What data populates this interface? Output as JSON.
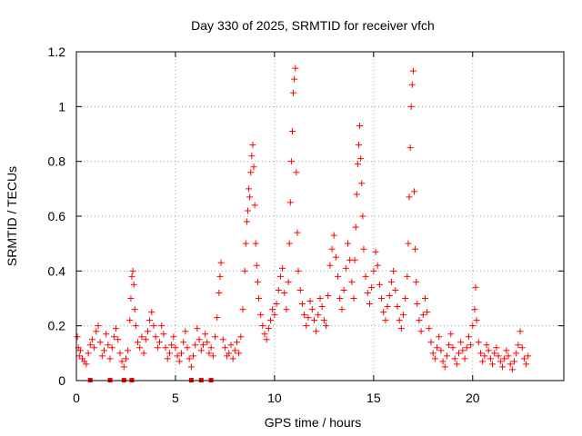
{
  "chart_data": {
    "type": "scatter",
    "title": "Day 330 of 2025, SRMTID for receiver vfch",
    "xlabel": "GPS time / hours",
    "ylabel": "SRMTID / TECUs",
    "xlim": [
      0,
      24.6
    ],
    "ylim": [
      0,
      1.2
    ],
    "x_ticks": [
      0,
      5,
      10,
      15,
      20
    ],
    "x_tick_labels": [
      "0",
      "5",
      "10",
      "15",
      "20"
    ],
    "y_ticks": [
      0,
      0.2,
      0.4,
      0.6,
      0.8,
      1.0,
      1.2
    ],
    "y_tick_labels": [
      "0",
      "0.2",
      "0.4",
      "0.6",
      "0.8",
      "1",
      "1.2"
    ],
    "grid": true,
    "marker": "+",
    "color": "#ff0000",
    "series": [
      {
        "name": "SRMTID",
        "points": [
          [
            0.05,
            0.16
          ],
          [
            0.1,
            0.12
          ],
          [
            0.15,
            0.09
          ],
          [
            0.2,
            0.11
          ],
          [
            0.3,
            0.08
          ],
          [
            0.4,
            0.07
          ],
          [
            0.5,
            0.06
          ],
          [
            0.6,
            0.1
          ],
          [
            0.7,
            0.13
          ],
          [
            0.8,
            0.15
          ],
          [
            0.9,
            0.12
          ],
          [
            1.0,
            0.18
          ],
          [
            1.1,
            0.2
          ],
          [
            1.2,
            0.14
          ],
          [
            1.3,
            0.09
          ],
          [
            1.4,
            0.11
          ],
          [
            1.5,
            0.17
          ],
          [
            1.6,
            0.13
          ],
          [
            1.7,
            0.08
          ],
          [
            1.8,
            0.12
          ],
          [
            1.9,
            0.16
          ],
          [
            2.0,
            0.19
          ],
          [
            2.1,
            0.15
          ],
          [
            2.2,
            0.1
          ],
          [
            2.3,
            0.07
          ],
          [
            2.4,
            0.05
          ],
          [
            2.5,
            0.08
          ],
          [
            2.6,
            0.11
          ],
          [
            2.7,
            0.22
          ],
          [
            2.75,
            0.3
          ],
          [
            2.8,
            0.38
          ],
          [
            2.85,
            0.4
          ],
          [
            2.9,
            0.35
          ],
          [
            2.95,
            0.26
          ],
          [
            3.0,
            0.2
          ],
          [
            3.1,
            0.14
          ],
          [
            3.2,
            0.12
          ],
          [
            3.3,
            0.16
          ],
          [
            3.4,
            0.1
          ],
          [
            3.5,
            0.15
          ],
          [
            3.6,
            0.18
          ],
          [
            3.7,
            0.22
          ],
          [
            3.8,
            0.25
          ],
          [
            3.9,
            0.2
          ],
          [
            4.0,
            0.16
          ],
          [
            4.1,
            0.12
          ],
          [
            4.2,
            0.14
          ],
          [
            4.3,
            0.2
          ],
          [
            4.4,
            0.17
          ],
          [
            4.5,
            0.12
          ],
          [
            4.6,
            0.08
          ],
          [
            4.7,
            0.1
          ],
          [
            4.8,
            0.13
          ],
          [
            4.9,
            0.16
          ],
          [
            5.0,
            0.12
          ],
          [
            5.1,
            0.09
          ],
          [
            5.2,
            0.07
          ],
          [
            5.3,
            0.1
          ],
          [
            5.4,
            0.14
          ],
          [
            5.5,
            0.18
          ],
          [
            5.6,
            0.12
          ],
          [
            5.7,
            0.08
          ],
          [
            5.8,
            0.05
          ],
          [
            5.9,
            0.09
          ],
          [
            6.0,
            0.13
          ],
          [
            6.1,
            0.19
          ],
          [
            6.2,
            0.15
          ],
          [
            6.3,
            0.11
          ],
          [
            6.4,
            0.13
          ],
          [
            6.5,
            0.17
          ],
          [
            6.6,
            0.14
          ],
          [
            6.7,
            0.1
          ],
          [
            6.8,
            0.12
          ],
          [
            6.9,
            0.09
          ],
          [
            7.0,
            0.16
          ],
          [
            7.1,
            0.23
          ],
          [
            7.2,
            0.32
          ],
          [
            7.25,
            0.38
          ],
          [
            7.3,
            0.43
          ],
          [
            7.4,
            0.15
          ],
          [
            7.5,
            0.12
          ],
          [
            7.6,
            0.09
          ],
          [
            7.7,
            0.1
          ],
          [
            7.8,
            0.13
          ],
          [
            7.9,
            0.08
          ],
          [
            8.0,
            0.11
          ],
          [
            8.1,
            0.14
          ],
          [
            8.2,
            0.1
          ],
          [
            8.3,
            0.16
          ],
          [
            8.4,
            0.26
          ],
          [
            8.5,
            0.4
          ],
          [
            8.55,
            0.5
          ],
          [
            8.6,
            0.58
          ],
          [
            8.65,
            0.62
          ],
          [
            8.7,
            0.7
          ],
          [
            8.75,
            0.67
          ],
          [
            8.8,
            0.76
          ],
          [
            8.85,
            0.82
          ],
          [
            8.9,
            0.86
          ],
          [
            8.95,
            0.78
          ],
          [
            9.0,
            0.64
          ],
          [
            9.05,
            0.5
          ],
          [
            9.1,
            0.42
          ],
          [
            9.15,
            0.36
          ],
          [
            9.2,
            0.3
          ],
          [
            9.3,
            0.24
          ],
          [
            9.4,
            0.2
          ],
          [
            9.5,
            0.17
          ],
          [
            9.6,
            0.15
          ],
          [
            9.7,
            0.19
          ],
          [
            9.8,
            0.22
          ],
          [
            9.9,
            0.26
          ],
          [
            10.0,
            0.24
          ],
          [
            10.1,
            0.28
          ],
          [
            10.2,
            0.33
          ],
          [
            10.3,
            0.38
          ],
          [
            10.4,
            0.41
          ],
          [
            10.5,
            0.32
          ],
          [
            10.6,
            0.26
          ],
          [
            10.7,
            0.36
          ],
          [
            10.75,
            0.5
          ],
          [
            10.8,
            0.65
          ],
          [
            10.85,
            0.8
          ],
          [
            10.9,
            0.91
          ],
          [
            10.95,
            1.05
          ],
          [
            11.0,
            1.1
          ],
          [
            11.05,
            1.14
          ],
          [
            11.1,
            0.76
          ],
          [
            11.15,
            0.54
          ],
          [
            11.2,
            0.4
          ],
          [
            11.3,
            0.33
          ],
          [
            11.4,
            0.28
          ],
          [
            11.5,
            0.24
          ],
          [
            11.6,
            0.2
          ],
          [
            11.7,
            0.23
          ],
          [
            11.8,
            0.29
          ],
          [
            11.9,
            0.26
          ],
          [
            12.0,
            0.22
          ],
          [
            12.1,
            0.18
          ],
          [
            12.2,
            0.24
          ],
          [
            12.3,
            0.3
          ],
          [
            12.4,
            0.27
          ],
          [
            12.5,
            0.22
          ],
          [
            12.6,
            0.2
          ],
          [
            12.7,
            0.31
          ],
          [
            12.8,
            0.42
          ],
          [
            12.9,
            0.48
          ],
          [
            13.0,
            0.53
          ],
          [
            13.1,
            0.45
          ],
          [
            13.2,
            0.38
          ],
          [
            13.3,
            0.3
          ],
          [
            13.4,
            0.26
          ],
          [
            13.5,
            0.33
          ],
          [
            13.6,
            0.41
          ],
          [
            13.7,
            0.5
          ],
          [
            13.8,
            0.44
          ],
          [
            13.9,
            0.36
          ],
          [
            14.0,
            0.3
          ],
          [
            14.05,
            0.44
          ],
          [
            14.1,
            0.56
          ],
          [
            14.15,
            0.68
          ],
          [
            14.2,
            0.79
          ],
          [
            14.25,
            0.86
          ],
          [
            14.3,
            0.93
          ],
          [
            14.35,
            0.81
          ],
          [
            14.4,
            0.72
          ],
          [
            14.45,
            0.6
          ],
          [
            14.5,
            0.48
          ],
          [
            14.6,
            0.38
          ],
          [
            14.7,
            0.32
          ],
          [
            14.8,
            0.28
          ],
          [
            14.9,
            0.34
          ],
          [
            15.0,
            0.4
          ],
          [
            15.1,
            0.47
          ],
          [
            15.2,
            0.42
          ],
          [
            15.3,
            0.35
          ],
          [
            15.4,
            0.3
          ],
          [
            15.5,
            0.25
          ],
          [
            15.6,
            0.22
          ],
          [
            15.7,
            0.27
          ],
          [
            15.8,
            0.31
          ],
          [
            15.9,
            0.36
          ],
          [
            16.0,
            0.4
          ],
          [
            16.1,
            0.33
          ],
          [
            16.2,
            0.27
          ],
          [
            16.3,
            0.22
          ],
          [
            16.4,
            0.19
          ],
          [
            16.5,
            0.24
          ],
          [
            16.6,
            0.3
          ],
          [
            16.7,
            0.38
          ],
          [
            16.75,
            0.5
          ],
          [
            16.8,
            0.67
          ],
          [
            16.85,
            0.85
          ],
          [
            16.9,
            1.0
          ],
          [
            16.95,
            1.08
          ],
          [
            17.0,
            1.13
          ],
          [
            17.05,
            0.69
          ],
          [
            17.1,
            0.48
          ],
          [
            17.15,
            0.36
          ],
          [
            17.2,
            0.28
          ],
          [
            17.3,
            0.22
          ],
          [
            17.4,
            0.18
          ],
          [
            17.5,
            0.24
          ],
          [
            17.6,
            0.3
          ],
          [
            17.7,
            0.25
          ],
          [
            17.8,
            0.19
          ],
          [
            17.9,
            0.14
          ],
          [
            18.0,
            0.1
          ],
          [
            18.1,
            0.08
          ],
          [
            18.2,
            0.12
          ],
          [
            18.3,
            0.16
          ],
          [
            18.4,
            0.11
          ],
          [
            18.5,
            0.07
          ],
          [
            18.6,
            0.05
          ],
          [
            18.7,
            0.09
          ],
          [
            18.8,
            0.13
          ],
          [
            18.9,
            0.17
          ],
          [
            19.0,
            0.12
          ],
          [
            19.1,
            0.08
          ],
          [
            19.2,
            0.06
          ],
          [
            19.3,
            0.1
          ],
          [
            19.4,
            0.14
          ],
          [
            19.5,
            0.11
          ],
          [
            19.6,
            0.08
          ],
          [
            19.7,
            0.12
          ],
          [
            19.8,
            0.16
          ],
          [
            19.9,
            0.13
          ],
          [
            20.0,
            0.2
          ],
          [
            20.1,
            0.26
          ],
          [
            20.15,
            0.34
          ],
          [
            20.2,
            0.22
          ],
          [
            20.3,
            0.14
          ],
          [
            20.4,
            0.1
          ],
          [
            20.5,
            0.07
          ],
          [
            20.6,
            0.09
          ],
          [
            20.7,
            0.13
          ],
          [
            20.8,
            0.11
          ],
          [
            20.9,
            0.08
          ],
          [
            21.0,
            0.06
          ],
          [
            21.1,
            0.1
          ],
          [
            21.2,
            0.12
          ],
          [
            21.3,
            0.09
          ],
          [
            21.4,
            0.07
          ],
          [
            21.5,
            0.05
          ],
          [
            21.6,
            0.08
          ],
          [
            21.7,
            0.11
          ],
          [
            21.8,
            0.09
          ],
          [
            21.9,
            0.06
          ],
          [
            22.0,
            0.04
          ],
          [
            22.1,
            0.07
          ],
          [
            22.2,
            0.1
          ],
          [
            22.3,
            0.13
          ],
          [
            22.4,
            0.18
          ],
          [
            22.5,
            0.12
          ],
          [
            22.6,
            0.08
          ],
          [
            22.7,
            0.06
          ],
          [
            22.8,
            0.09
          ]
        ]
      }
    ],
    "zero_markers_x": [
      0.7,
      1.7,
      2.4,
      2.8,
      5.8,
      6.3,
      6.8
    ]
  }
}
